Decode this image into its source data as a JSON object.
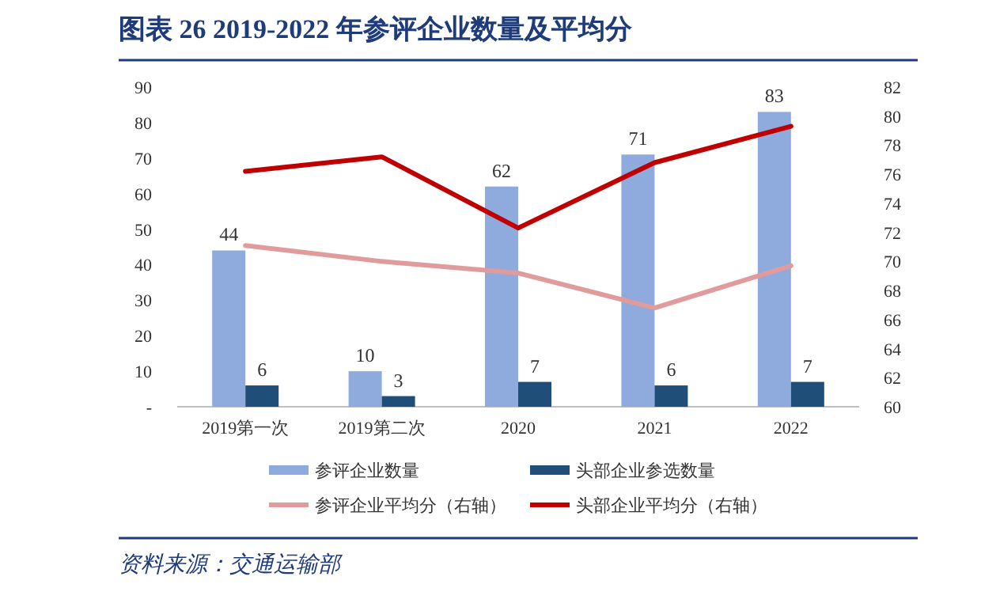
{
  "chart_data": {
    "type": "bar",
    "title": "图表 26  2019-2022 年参评企业数量及平均分",
    "categories": [
      "2019第一次",
      "2019第二次",
      "2020",
      "2021",
      "2022"
    ],
    "series": [
      {
        "name": "参评企业数量",
        "color": "#8faadc",
        "values": [
          44,
          10,
          62,
          71,
          83
        ],
        "value_labels": [
          "44",
          "10",
          "62",
          "71",
          "83"
        ]
      },
      {
        "name": "头部企业参选数量",
        "color": "#1f4e79",
        "values": [
          6,
          3,
          7,
          6,
          7
        ],
        "value_labels": [
          "6",
          "3",
          "7",
          "6",
          "7"
        ]
      },
      {
        "name": "参评企业平均分（右轴）",
        "type": "line",
        "axis": "y2",
        "color": "#e09c9c",
        "values": [
          71.1,
          70.0,
          69.2,
          66.8,
          69.7
        ]
      },
      {
        "name": "头部企业平均分（右轴）",
        "type": "line",
        "axis": "y2",
        "color": "#c00000",
        "values": [
          76.2,
          77.2,
          72.3,
          76.8,
          79.3
        ]
      }
    ],
    "ylim": [
      0,
      90
    ],
    "yticks": [
      {
        "value": 0,
        "label": "-"
      },
      10,
      20,
      30,
      40,
      50,
      60,
      70,
      80,
      90
    ],
    "y2lim": [
      60,
      82
    ],
    "y2ticks": [
      60,
      62,
      64,
      66,
      68,
      70,
      72,
      74,
      76,
      78,
      80,
      82
    ],
    "legend": "bottom",
    "annotations": [
      "资料来源：交通运输部"
    ]
  }
}
